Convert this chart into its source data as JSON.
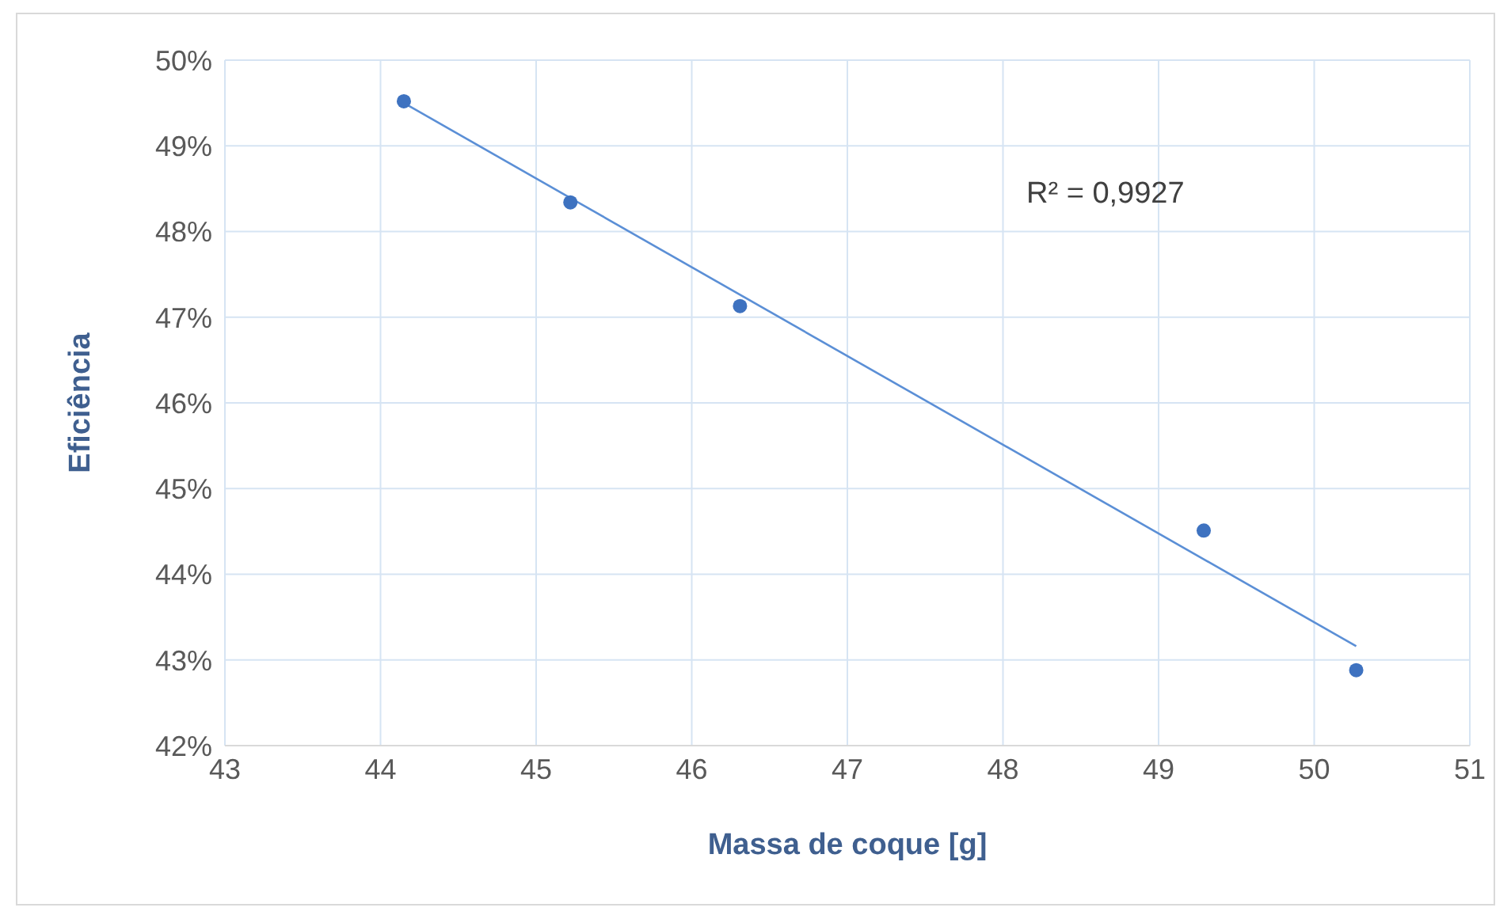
{
  "chart_data": {
    "type": "scatter",
    "xlabel": "Massa de coque [g]",
    "ylabel": "Eficiência",
    "grid": true,
    "xlim": [
      43,
      51
    ],
    "xticks": [
      43,
      44,
      45,
      46,
      47,
      48,
      49,
      50,
      51
    ],
    "ylim": [
      42,
      50
    ],
    "yticks": [
      {
        "value": 42,
        "label": "42%"
      },
      {
        "value": 43,
        "label": "43%"
      },
      {
        "value": 44,
        "label": "44%"
      },
      {
        "value": 45,
        "label": "45%"
      },
      {
        "value": 46,
        "label": "46%"
      },
      {
        "value": 47,
        "label": "47%"
      },
      {
        "value": 48,
        "label": "48%"
      },
      {
        "value": 49,
        "label": "49%"
      },
      {
        "value": 50,
        "label": "50%"
      }
    ],
    "series": [
      {
        "type": "scatter",
        "marker": "circle",
        "color": "#3e72c0",
        "x": [
          44.15,
          45.22,
          46.31,
          49.29,
          50.27
        ],
        "values": [
          49.52,
          48.34,
          47.13,
          44.51,
          42.88
        ]
      },
      {
        "type": "line",
        "marker": "none",
        "color": "#5b8fd6",
        "x": [
          44.15,
          50.27
        ],
        "values": [
          49.5,
          43.16
        ]
      }
    ],
    "annotations": [
      "R² = 0,9927"
    ]
  }
}
